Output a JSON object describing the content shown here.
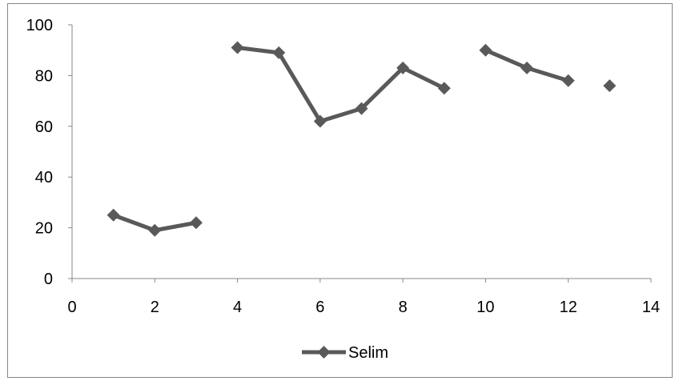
{
  "chart_data": {
    "type": "line",
    "title": "",
    "xlabel": "",
    "ylabel": "",
    "xlim": [
      0,
      14
    ],
    "ylim": [
      0,
      100
    ],
    "x_ticks": [
      "0",
      "2",
      "4",
      "6",
      "8",
      "10",
      "12",
      "14"
    ],
    "y_ticks": [
      "0",
      "20",
      "40",
      "60",
      "80",
      "100"
    ],
    "grid": false,
    "legend_position": "bottom",
    "series": [
      {
        "name": "Selim",
        "color": "#595959",
        "marker": "diamond",
        "points": [
          {
            "x": 1,
            "y": 25
          },
          {
            "x": 2,
            "y": 19
          },
          {
            "x": 3,
            "y": 22
          },
          {
            "x": 4,
            "y": 91
          },
          {
            "x": 5,
            "y": 89
          },
          {
            "x": 6,
            "y": 62
          },
          {
            "x": 7,
            "y": 67
          },
          {
            "x": 8,
            "y": 83
          },
          {
            "x": 9,
            "y": 75
          },
          {
            "x": 10,
            "y": 90
          },
          {
            "x": 11,
            "y": 83
          },
          {
            "x": 12,
            "y": 78
          },
          {
            "x": 13,
            "y": 76
          }
        ],
        "segments": [
          [
            1,
            2,
            3
          ],
          [
            4,
            5,
            6,
            7,
            8,
            9
          ],
          [
            10,
            11,
            12
          ],
          [
            13
          ]
        ]
      }
    ]
  }
}
